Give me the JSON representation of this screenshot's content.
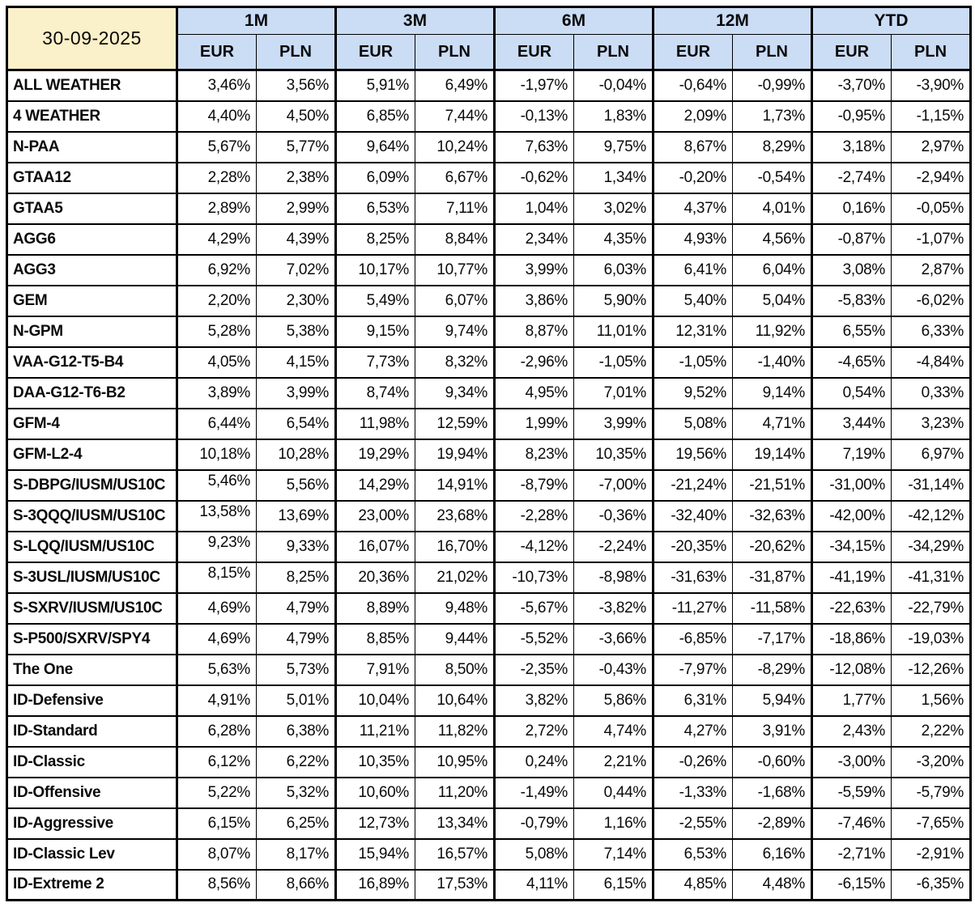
{
  "chart_data": {
    "type": "table",
    "title": "30-09-2025",
    "column_groups": [
      "1M",
      "3M",
      "6M",
      "12M",
      "YTD"
    ],
    "sub_columns": [
      "EUR",
      "PLN"
    ],
    "colors": {
      "date_bg": "#FAF0C9",
      "header_bg": "#CBDCF5",
      "border": "#000000",
      "text": "#0a0a0a"
    },
    "rows": [
      {
        "name": "ALL WEATHER",
        "values": [
          "3,46%",
          "3,56%",
          "5,91%",
          "6,49%",
          "-1,97%",
          "-0,04%",
          "-0,64%",
          "-0,99%",
          "-3,70%",
          "-3,90%"
        ]
      },
      {
        "name": "4 WEATHER",
        "values": [
          "4,40%",
          "4,50%",
          "6,85%",
          "7,44%",
          "-0,13%",
          "1,83%",
          "2,09%",
          "1,73%",
          "-0,95%",
          "-1,15%"
        ]
      },
      {
        "name": "N-PAA",
        "values": [
          "5,67%",
          "5,77%",
          "9,64%",
          "10,24%",
          "7,63%",
          "9,75%",
          "8,67%",
          "8,29%",
          "3,18%",
          "2,97%"
        ]
      },
      {
        "name": "GTAA12",
        "values": [
          "2,28%",
          "2,38%",
          "6,09%",
          "6,67%",
          "-0,62%",
          "1,34%",
          "-0,20%",
          "-0,54%",
          "-2,74%",
          "-2,94%"
        ]
      },
      {
        "name": "GTAA5",
        "values": [
          "2,89%",
          "2,99%",
          "6,53%",
          "7,11%",
          "1,04%",
          "3,02%",
          "4,37%",
          "4,01%",
          "0,16%",
          "-0,05%"
        ]
      },
      {
        "name": "AGG6",
        "values": [
          "4,29%",
          "4,39%",
          "8,25%",
          "8,84%",
          "2,34%",
          "4,35%",
          "4,93%",
          "4,56%",
          "-0,87%",
          "-1,07%"
        ]
      },
      {
        "name": "AGG3",
        "values": [
          "6,92%",
          "7,02%",
          "10,17%",
          "10,77%",
          "3,99%",
          "6,03%",
          "6,41%",
          "6,04%",
          "3,08%",
          "2,87%"
        ]
      },
      {
        "name": "GEM",
        "values": [
          "2,20%",
          "2,30%",
          "5,49%",
          "6,07%",
          "3,86%",
          "5,90%",
          "5,40%",
          "5,04%",
          "-5,83%",
          "-6,02%"
        ]
      },
      {
        "name": "N-GPM",
        "values": [
          "5,28%",
          "5,38%",
          "9,15%",
          "9,74%",
          "8,87%",
          "11,01%",
          "12,31%",
          "11,92%",
          "6,55%",
          "6,33%"
        ]
      },
      {
        "name": "VAA-G12-T5-B4",
        "values": [
          "4,05%",
          "4,15%",
          "7,73%",
          "8,32%",
          "-2,96%",
          "-1,05%",
          "-1,05%",
          "-1,40%",
          "-4,65%",
          "-4,84%"
        ]
      },
      {
        "name": "DAA-G12-T6-B2",
        "values": [
          "3,89%",
          "3,99%",
          "8,74%",
          "9,34%",
          "4,95%",
          "7,01%",
          "9,52%",
          "9,14%",
          "0,54%",
          "0,33%"
        ]
      },
      {
        "name": "GFM-4",
        "values": [
          "6,44%",
          "6,54%",
          "11,98%",
          "12,59%",
          "1,99%",
          "3,99%",
          "5,08%",
          "4,71%",
          "3,44%",
          "3,23%"
        ]
      },
      {
        "name": "GFM-L2-4",
        "values": [
          "10,18%",
          "10,28%",
          "19,29%",
          "19,94%",
          "8,23%",
          "10,35%",
          "19,56%",
          "19,14%",
          "7,19%",
          "6,97%"
        ]
      },
      {
        "name": "S-DBPG/IUSM/US10C",
        "first_top": true,
        "values": [
          "5,46%",
          "5,56%",
          "14,29%",
          "14,91%",
          "-8,79%",
          "-7,00%",
          "-21,24%",
          "-21,51%",
          "-31,00%",
          "-31,14%"
        ]
      },
      {
        "name": "S-3QQQ/IUSM/US10C",
        "first_top": true,
        "values": [
          "13,58%",
          "13,69%",
          "23,00%",
          "23,68%",
          "-2,28%",
          "-0,36%",
          "-32,40%",
          "-32,63%",
          "-42,00%",
          "-42,12%"
        ]
      },
      {
        "name": "S-LQQ/IUSM/US10C",
        "first_top": true,
        "values": [
          "9,23%",
          "9,33%",
          "16,07%",
          "16,70%",
          "-4,12%",
          "-2,24%",
          "-20,35%",
          "-20,62%",
          "-34,15%",
          "-34,29%"
        ]
      },
      {
        "name": "S-3USL/IUSM/US10C",
        "first_top": true,
        "values": [
          "8,15%",
          "8,25%",
          "20,36%",
          "21,02%",
          "-10,73%",
          "-8,98%",
          "-31,63%",
          "-31,87%",
          "-41,19%",
          "-41,31%"
        ]
      },
      {
        "name": "S-SXRV/IUSM/US10C",
        "values": [
          "4,69%",
          "4,79%",
          "8,89%",
          "9,48%",
          "-5,67%",
          "-3,82%",
          "-11,27%",
          "-11,58%",
          "-22,63%",
          "-22,79%"
        ]
      },
      {
        "name": "S-P500/SXRV/SPY4",
        "values": [
          "4,69%",
          "4,79%",
          "8,85%",
          "9,44%",
          "-5,52%",
          "-3,66%",
          "-6,85%",
          "-7,17%",
          "-18,86%",
          "-19,03%"
        ]
      },
      {
        "name": "The One",
        "values": [
          "5,63%",
          "5,73%",
          "7,91%",
          "8,50%",
          "-2,35%",
          "-0,43%",
          "-7,97%",
          "-8,29%",
          "-12,08%",
          "-12,26%"
        ]
      },
      {
        "name": "ID-Defensive",
        "values": [
          "4,91%",
          "5,01%",
          "10,04%",
          "10,64%",
          "3,82%",
          "5,86%",
          "6,31%",
          "5,94%",
          "1,77%",
          "1,56%"
        ]
      },
      {
        "name": "ID-Standard",
        "values": [
          "6,28%",
          "6,38%",
          "11,21%",
          "11,82%",
          "2,72%",
          "4,74%",
          "4,27%",
          "3,91%",
          "2,43%",
          "2,22%"
        ]
      },
      {
        "name": "ID-Classic",
        "values": [
          "6,12%",
          "6,22%",
          "10,35%",
          "10,95%",
          "0,24%",
          "2,21%",
          "-0,26%",
          "-0,60%",
          "-3,00%",
          "-3,20%"
        ]
      },
      {
        "name": "ID-Offensive",
        "values": [
          "5,22%",
          "5,32%",
          "10,60%",
          "11,20%",
          "-1,49%",
          "0,44%",
          "-1,33%",
          "-1,68%",
          "-5,59%",
          "-5,79%"
        ]
      },
      {
        "name": "ID-Aggressive",
        "values": [
          "6,15%",
          "6,25%",
          "12,73%",
          "13,34%",
          "-0,79%",
          "1,16%",
          "-2,55%",
          "-2,89%",
          "-7,46%",
          "-7,65%"
        ]
      },
      {
        "name": "ID-Classic Lev",
        "values": [
          "8,07%",
          "8,17%",
          "15,94%",
          "16,57%",
          "5,08%",
          "7,14%",
          "6,53%",
          "6,16%",
          "-2,71%",
          "-2,91%"
        ]
      },
      {
        "name": "ID-Extreme 2",
        "values": [
          "8,56%",
          "8,66%",
          "16,89%",
          "17,53%",
          "4,11%",
          "6,15%",
          "4,85%",
          "4,48%",
          "-6,15%",
          "-6,35%"
        ]
      }
    ]
  }
}
